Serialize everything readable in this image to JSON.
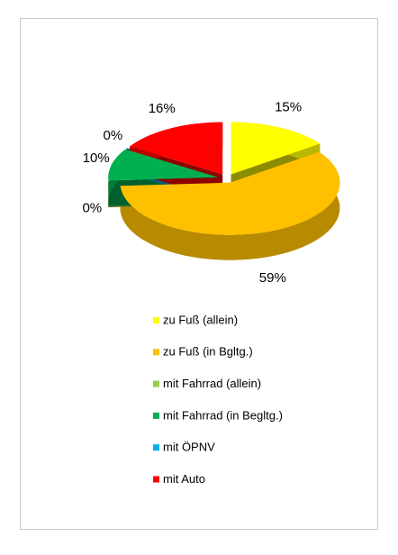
{
  "chart_data": {
    "type": "pie",
    "categories": [
      "zu Fuß (allein)",
      "zu Fuß (in Bgltg.)",
      "mit Fahrrad (allein)",
      "mit Fahrrad (in Begltg.)",
      "mit ÖPNV",
      "mit Auto"
    ],
    "values": [
      15,
      59,
      0,
      10,
      0,
      16
    ],
    "value_labels": [
      "15%",
      "59%",
      "0%",
      "10%",
      "0%",
      "16%"
    ],
    "colors": [
      "#ffff00",
      "#ffc000",
      "#92d050",
      "#00b050",
      "#00b0f0",
      "#ff0000"
    ],
    "legend": "bottom"
  }
}
